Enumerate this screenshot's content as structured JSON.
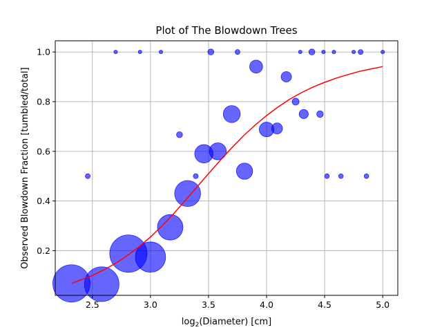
{
  "chart_data": {
    "type": "scatter",
    "title": "Plot of The Blowdown Trees",
    "xlabel_prefix": "log",
    "xlabel_sub": "2",
    "xlabel_suffix": "(Diameter) [cm]",
    "ylabel": "Observed Blowdown Fraction [tumbled/total]",
    "xlim": [
      2.18,
      5.13
    ],
    "ylim": [
      0.02,
      1.045
    ],
    "xticks": [
      2.5,
      3.0,
      3.5,
      4.0,
      4.5,
      5.0
    ],
    "xtick_labels": [
      "2.5",
      "3.0",
      "3.5",
      "4.0",
      "4.5",
      "5.0"
    ],
    "yticks": [
      0.2,
      0.4,
      0.6,
      0.8,
      1.0
    ],
    "ytick_labels": [
      "0.2",
      "0.4",
      "0.6",
      "0.8",
      "1.0"
    ],
    "grid": true,
    "marker_color": "#0000ff",
    "marker_alpha": 0.6,
    "curve_color": "#ff0000",
    "points": [
      {
        "x": 2.32,
        "y": 0.068,
        "n": 58
      },
      {
        "x": 2.46,
        "y": 0.5,
        "n": 1
      },
      {
        "x": 2.58,
        "y": 0.065,
        "n": 50
      },
      {
        "x": 2.7,
        "y": 1.0,
        "n": 0.5
      },
      {
        "x": 2.81,
        "y": 0.188,
        "n": 58
      },
      {
        "x": 2.91,
        "y": 1.0,
        "n": 0.5
      },
      {
        "x": 3.0,
        "y": 0.174,
        "n": 38
      },
      {
        "x": 3.09,
        "y": 1.0,
        "n": 0.5
      },
      {
        "x": 3.17,
        "y": 0.294,
        "n": 27
      },
      {
        "x": 3.25,
        "y": 0.667,
        "n": 1.5
      },
      {
        "x": 3.32,
        "y": 0.43,
        "n": 28
      },
      {
        "x": 3.39,
        "y": 0.5,
        "n": 1
      },
      {
        "x": 3.46,
        "y": 0.59,
        "n": 14
      },
      {
        "x": 3.52,
        "y": 1.0,
        "n": 1.5
      },
      {
        "x": 3.58,
        "y": 0.6,
        "n": 12
      },
      {
        "x": 3.7,
        "y": 0.75,
        "n": 12
      },
      {
        "x": 3.75,
        "y": 1.0,
        "n": 1
      },
      {
        "x": 3.81,
        "y": 0.52,
        "n": 11
      },
      {
        "x": 3.91,
        "y": 0.941,
        "n": 7
      },
      {
        "x": 4.0,
        "y": 0.688,
        "n": 9
      },
      {
        "x": 4.09,
        "y": 0.692,
        "n": 5
      },
      {
        "x": 4.17,
        "y": 0.9,
        "n": 4.5
      },
      {
        "x": 4.25,
        "y": 0.8,
        "n": 2
      },
      {
        "x": 4.29,
        "y": 1.0,
        "n": 0.5
      },
      {
        "x": 4.32,
        "y": 0.75,
        "n": 3.5
      },
      {
        "x": 4.39,
        "y": 1.0,
        "n": 1.5
      },
      {
        "x": 4.46,
        "y": 0.75,
        "n": 1.8
      },
      {
        "x": 4.49,
        "y": 1.0,
        "n": 0.5
      },
      {
        "x": 4.52,
        "y": 0.5,
        "n": 0.9
      },
      {
        "x": 4.58,
        "y": 1.0,
        "n": 0.5
      },
      {
        "x": 4.64,
        "y": 0.5,
        "n": 0.9
      },
      {
        "x": 4.75,
        "y": 1.0,
        "n": 0.5
      },
      {
        "x": 4.81,
        "y": 1.0,
        "n": 1
      },
      {
        "x": 4.86,
        "y": 0.5,
        "n": 0.9
      },
      {
        "x": 5.0,
        "y": 1.0,
        "n": 0.5
      }
    ],
    "curve": {
      "x": [
        2.32,
        2.4,
        2.5,
        2.6,
        2.7,
        2.8,
        2.9,
        3.0,
        3.1,
        3.2,
        3.3,
        3.4,
        3.5,
        3.6,
        3.7,
        3.8,
        3.9,
        4.0,
        4.1,
        4.2,
        4.3,
        4.4,
        4.5,
        4.6,
        4.7,
        4.8,
        4.9,
        5.0
      ],
      "y": [
        0.068,
        0.082,
        0.1,
        0.123,
        0.149,
        0.18,
        0.215,
        0.255,
        0.3,
        0.349,
        0.402,
        0.456,
        0.51,
        0.563,
        0.614,
        0.662,
        0.705,
        0.744,
        0.779,
        0.81,
        0.836,
        0.859,
        0.878,
        0.895,
        0.909,
        0.922,
        0.932,
        0.941
      ]
    }
  }
}
